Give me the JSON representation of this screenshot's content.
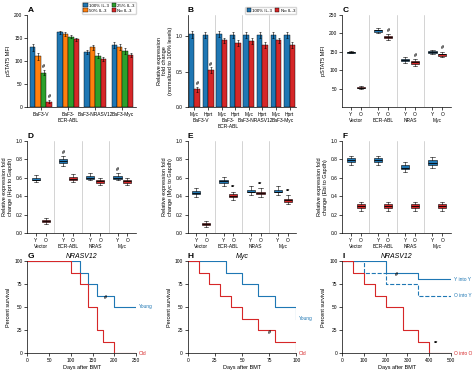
{
  "chart_data": [
    {
      "type": "bar",
      "title": "A",
      "ylabel": "pSTAT5 MFI",
      "categories": [
        "BaF3-V",
        "BaF3-\nBCR-ABL",
        "BaF3-NRASV12",
        "BaF3-Myc"
      ],
      "series": [
        {
          "name": "100% IL-3",
          "color": "#1f77b4",
          "values": [
            130,
            162,
            120,
            135
          ],
          "errors": [
            8,
            4,
            5,
            6
          ]
        },
        {
          "name": "50% IL-3",
          "color": "#ff7f0e",
          "values": [
            110,
            158,
            130,
            130
          ],
          "errors": [
            7,
            4,
            5,
            6
          ]
        },
        {
          "name": "25% IL-3",
          "color": "#2ca02c",
          "values": [
            75,
            153,
            112,
            122
          ],
          "errors": [
            6,
            4,
            5,
            6
          ],
          "marks": [
            "#",
            null,
            null,
            null
          ]
        },
        {
          "name": "No IL-3",
          "color": "#d62728",
          "values": [
            12,
            147,
            104,
            113
          ],
          "errors": [
            4,
            4,
            4,
            5
          ],
          "marks": [
            "#",
            null,
            null,
            null
          ]
        }
      ],
      "ylim": [
        0,
        200
      ],
      "yticks": [
        0,
        50,
        100,
        150,
        200
      ],
      "legend": "upper right"
    },
    {
      "type": "bar",
      "title": "B",
      "ylabel": "Relative expression\nfold change\n(normalized to 100% levels)",
      "categories": [
        "Myc",
        "Hprt",
        "Myc",
        "Hprt",
        "Myc",
        "Hprt",
        "Myc",
        "Hprt"
      ],
      "groups": [
        "BaF3-V",
        "BaF3-\nBCR-ABL",
        "BaF3-NRASV12",
        "BaF3-Myc"
      ],
      "series": [
        {
          "name": "100% IL-3",
          "color": "#1f77b4",
          "values": [
            1.03,
            1.02,
            1.03,
            1.02,
            1.02,
            1.02,
            1.02,
            1.02
          ],
          "errors": [
            0.05,
            0.04,
            0.04,
            0.04,
            0.04,
            0.04,
            0.04,
            0.04
          ]
        },
        {
          "name": "No IL-3",
          "color": "#d62728",
          "values": [
            0.25,
            0.52,
            0.94,
            0.9,
            0.93,
            0.88,
            0.94,
            0.88
          ],
          "errors": [
            0.04,
            0.04,
            0.04,
            0.04,
            0.04,
            0.04,
            0.04,
            0.04
          ],
          "marks": [
            "#",
            "#",
            null,
            null,
            null,
            null,
            null,
            null
          ]
        }
      ],
      "ylim": [
        0,
        1.3
      ],
      "yticks": [
        0.0,
        0.5,
        1.0
      ],
      "legend": "upper right"
    },
    {
      "type": "box",
      "title": "C",
      "ylabel": "pSTAT5 MFI",
      "categories": [
        "Vector",
        "BCR-ABL",
        "NRAS",
        "Myc"
      ],
      "series": [
        {
          "name": "Y",
          "color": "#1f77b4",
          "values": [
            [
              148,
              150,
              153,
              146,
              149
            ],
            [
              205,
              210,
              215,
              200,
              208
            ],
            [
              125,
              130,
              135,
              120,
              128
            ],
            [
              148,
              152,
              155,
              145,
              150
            ]
          ]
        },
        {
          "name": "O",
          "color": "#d62728",
          "values": [
            [
              52,
              55,
              58,
              48,
              53
            ],
            [
              188,
              192,
              198,
              182,
              190
            ],
            [
              118,
              125,
              130,
              112,
              122
            ],
            [
              140,
              145,
              150,
              137,
              143
            ]
          ],
          "marks": [
            null,
            "#",
            "#",
            "#"
          ]
        }
      ],
      "ylim": [
        0,
        250
      ],
      "yticks": [
        50,
        100,
        150,
        200,
        250
      ]
    },
    {
      "type": "box",
      "title": "D",
      "ylabel": "Relative expression fold\nchange (Hprt to Gapdh)",
      "categories": [
        "Vector",
        "BCR-ABL",
        "NRAS",
        "Myc"
      ],
      "series": [
        {
          "name": "Y",
          "color": "#1f77b4",
          "values": [
            [
              0.57,
              0.6,
              0.63,
              0.55,
              0.58
            ],
            [
              0.76,
              0.8,
              0.83,
              0.73,
              0.78
            ],
            [
              0.59,
              0.62,
              0.65,
              0.57,
              0.6
            ],
            [
              0.59,
              0.62,
              0.65,
              0.57,
              0.6
            ]
          ],
          "marks": [
            null,
            "#",
            null,
            "#"
          ]
        },
        {
          "name": "O",
          "color": "#d62728",
          "values": [
            [
              0.12,
              0.14,
              0.16,
              0.1,
              0.13
            ],
            [
              0.58,
              0.61,
              0.64,
              0.55,
              0.59
            ],
            [
              0.54,
              0.57,
              0.6,
              0.52,
              0.56
            ],
            [
              0.54,
              0.57,
              0.6,
              0.52,
              0.56
            ]
          ]
        }
      ],
      "ylim": [
        0,
        1.0
      ],
      "yticks": [
        0.0,
        0.2,
        0.4,
        0.6,
        0.8,
        1.0
      ]
    },
    {
      "type": "box",
      "title": "E",
      "ylabel": "Relative expression fold\nchange (Myc to Gapdh)",
      "categories": [
        "Vector",
        "BCR-ABL",
        "NRAS",
        "Myc"
      ],
      "series": [
        {
          "name": "Y",
          "color": "#1f77b4",
          "values": [
            [
              0.42,
              0.46,
              0.49,
              0.39,
              0.43
            ],
            [
              0.54,
              0.58,
              0.61,
              0.51,
              0.56
            ],
            [
              0.44,
              0.47,
              0.51,
              0.41,
              0.45
            ],
            [
              0.44,
              0.47,
              0.51,
              0.41,
              0.45
            ]
          ]
        },
        {
          "name": "O",
          "color": "#d62728",
          "values": [
            [
              0.09,
              0.11,
              0.13,
              0.07,
              0.1
            ],
            [
              0.39,
              0.42,
              0.45,
              0.36,
              0.4
            ],
            [
              0.42,
              0.45,
              0.49,
              0.39,
              0.43
            ],
            [
              0.34,
              0.37,
              0.41,
              0.31,
              0.36
            ]
          ],
          "marks": [
            null,
            "**",
            "**",
            "**"
          ]
        }
      ],
      "ylim": [
        0,
        1.0
      ],
      "yticks": [
        0.0,
        0.2,
        0.4,
        0.6,
        0.8,
        1.0
      ]
    },
    {
      "type": "box",
      "title": "F",
      "ylabel": "Relative expression fold\nchange (Ebi to Gapdh)",
      "categories": [
        "Vector",
        "BCR-ABL",
        "NRAS",
        "Myc"
      ],
      "series": [
        {
          "name": "Y",
          "color": "#1f77b4",
          "values": [
            [
              0.77,
              0.81,
              0.84,
              0.74,
              0.79
            ],
            [
              0.77,
              0.81,
              0.84,
              0.74,
              0.79
            ],
            [
              0.69,
              0.74,
              0.77,
              0.66,
              0.71
            ],
            [
              0.74,
              0.79,
              0.82,
              0.71,
              0.76
            ]
          ]
        },
        {
          "name": "O",
          "color": "#d62728",
          "values": [
            [
              0.27,
              0.31,
              0.34,
              0.24,
              0.29
            ],
            [
              0.27,
              0.31,
              0.34,
              0.24,
              0.29
            ],
            [
              0.27,
              0.31,
              0.34,
              0.24,
              0.29
            ],
            [
              0.27,
              0.31,
              0.34,
              0.24,
              0.29
            ]
          ]
        }
      ],
      "ylim": [
        0,
        1.0
      ],
      "yticks": [
        0.0,
        0.2,
        0.4,
        0.6,
        0.8,
        1.0
      ]
    },
    {
      "type": "step",
      "title": "G",
      "subtitle": "NRASV12",
      "xlabel": "Days after BMT",
      "ylabel": "Percent survival",
      "xlim": [
        0,
        250
      ],
      "ylim": [
        0,
        100
      ],
      "xticks": [
        0,
        50,
        100,
        150,
        200,
        250
      ],
      "yticks": [
        0,
        25,
        50,
        75,
        100
      ],
      "series": [
        {
          "name": "Young",
          "color": "#1f77b4",
          "line_style": "solid",
          "x": [
            0,
            100,
            120,
            140,
            160,
            180,
            200,
            250
          ],
          "values": [
            100,
            100,
            87,
            75,
            62,
            62,
            50,
            50
          ]
        },
        {
          "name": "Old",
          "color": "#d62728",
          "line_style": "solid",
          "x": [
            0,
            80,
            100,
            120,
            140,
            160,
            175,
            200,
            250
          ],
          "values": [
            100,
            100,
            87,
            75,
            50,
            25,
            12,
            0,
            0
          ]
        }
      ],
      "annotations": [
        {
          "text": "#",
          "x": 180,
          "y": 58
        }
      ]
    },
    {
      "type": "step",
      "title": "H",
      "subtitle": "Myc",
      "xlabel": "Days after BMT",
      "ylabel": "Percent survival",
      "xlim": [
        0,
        100
      ],
      "ylim": [
        0,
        100
      ],
      "xticks": [
        0,
        25,
        50,
        75,
        100
      ],
      "yticks": [
        0,
        25,
        50,
        75,
        100
      ],
      "series": [
        {
          "name": "Young",
          "color": "#1f77b4",
          "line_style": "solid",
          "x": [
            0,
            20,
            35,
            50,
            65,
            80,
            100
          ],
          "values": [
            100,
            100,
            87,
            75,
            62,
            50,
            37
          ]
        },
        {
          "name": "Old",
          "color": "#d62728",
          "line_style": "solid",
          "x": [
            0,
            10,
            20,
            30,
            40,
            50,
            65,
            80,
            100
          ],
          "values": [
            100,
            87,
            75,
            62,
            50,
            37,
            25,
            12,
            0
          ]
        }
      ],
      "annotations": [
        {
          "text": "#",
          "x": 75,
          "y": 20
        }
      ]
    },
    {
      "type": "step",
      "title": "I",
      "subtitle": "NRASV12",
      "xlabel": "Days after BMT",
      "ylabel": "Percent survival",
      "xlim": [
        0,
        500
      ],
      "ylim": [
        0,
        100
      ],
      "xticks": [
        0,
        100,
        200,
        300,
        400,
        500
      ],
      "yticks": [
        0,
        25,
        50,
        75,
        100
      ],
      "series": [
        {
          "name": "Y into Y",
          "color": "#1f77b4",
          "line_style": "solid",
          "x": [
            0,
            100,
            200,
            350,
            500
          ],
          "values": [
            100,
            100,
            87,
            80,
            80
          ]
        },
        {
          "name": "O into Y",
          "color": "#1f77b4",
          "line_style": "dashed",
          "x": [
            0,
            100,
            200,
            350,
            500
          ],
          "values": [
            100,
            87,
            75,
            62,
            62
          ]
        },
        {
          "name": "O into O",
          "color": "#d62728",
          "line_style": "solid",
          "x": [
            0,
            50,
            100,
            150,
            200,
            280,
            350,
            400,
            450,
            500
          ],
          "values": [
            100,
            87,
            75,
            62,
            50,
            25,
            12,
            0,
            0,
            0
          ]
        }
      ],
      "annotations": [
        {
          "text": "#",
          "x": 250,
          "y": 83
        },
        {
          "text": "**",
          "x": 430,
          "y": 8
        }
      ]
    }
  ]
}
